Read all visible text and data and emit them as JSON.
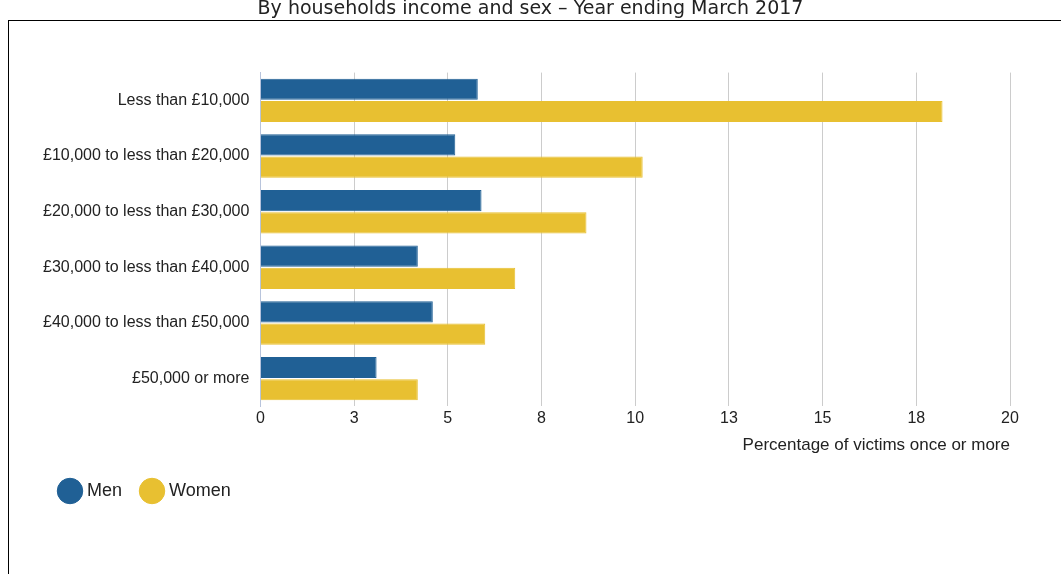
{
  "chart_data": {
    "type": "bar",
    "orientation": "horizontal",
    "title": "By households income and sex – Year ending March 2017",
    "xlabel": "Percentage of victims once or more",
    "categories": [
      "Less than £10,000",
      "£10,000 to less than £20,000",
      "£20,000 to less than £30,000",
      "£30,000 to less than £40,000",
      "£40,000 to less than £50,000",
      "£50,000 or more"
    ],
    "series": [
      {
        "name": "Men",
        "color": "#206095",
        "values": [
          5.8,
          5.2,
          5.9,
          4.2,
          4.6,
          3.1
        ]
      },
      {
        "name": "Women",
        "color": "#e8c031",
        "values": [
          18.2,
          10.2,
          8.7,
          6.8,
          6.0,
          4.2
        ]
      }
    ],
    "xlim": [
      0,
      20
    ],
    "xticks": [
      0,
      {
        "value": 2.5,
        "label": "3"
      },
      5,
      {
        "value": 7.5,
        "label": "8"
      },
      10,
      {
        "value": 12.5,
        "label": "13"
      },
      15,
      {
        "value": 17.5,
        "label": "18"
      },
      20
    ],
    "grid": "x",
    "legend": "bottom left",
    "marker": "circle"
  }
}
